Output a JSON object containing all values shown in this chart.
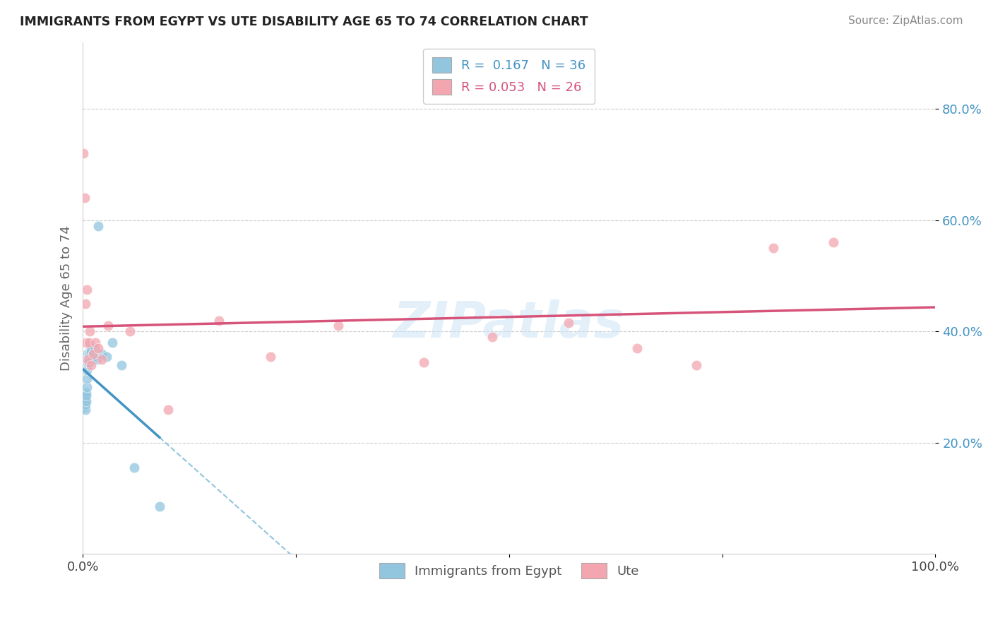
{
  "title": "IMMIGRANTS FROM EGYPT VS UTE DISABILITY AGE 65 TO 74 CORRELATION CHART",
  "source": "Source: ZipAtlas.com",
  "legend_label1": "Immigrants from Egypt",
  "legend_label2": "Ute",
  "R1": "0.167",
  "N1": "36",
  "R2": "0.053",
  "N2": "26",
  "blue_color": "#92c5de",
  "pink_color": "#f4a6b0",
  "blue_line_color": "#4393c3",
  "pink_line_color": "#d6537a",
  "diagonal_color": "#92c5de",
  "ytick_labels": [
    "20.0%",
    "40.0%",
    "60.0%",
    "80.0%"
  ],
  "ytick_values": [
    0.2,
    0.4,
    0.6,
    0.8
  ],
  "blue_x": [
    0.001,
    0.001,
    0.001,
    0.002,
    0.002,
    0.002,
    0.002,
    0.003,
    0.003,
    0.003,
    0.003,
    0.004,
    0.004,
    0.004,
    0.005,
    0.005,
    0.005,
    0.006,
    0.006,
    0.007,
    0.007,
    0.008,
    0.008,
    0.009,
    0.01,
    0.011,
    0.012,
    0.014,
    0.016,
    0.018,
    0.022,
    0.028,
    0.035,
    0.045,
    0.06,
    0.09
  ],
  "blue_y": [
    0.265,
    0.275,
    0.285,
    0.27,
    0.28,
    0.265,
    0.275,
    0.26,
    0.272,
    0.268,
    0.28,
    0.29,
    0.275,
    0.285,
    0.3,
    0.315,
    0.33,
    0.345,
    0.36,
    0.345,
    0.36,
    0.375,
    0.35,
    0.36,
    0.365,
    0.35,
    0.36,
    0.37,
    0.35,
    0.59,
    0.36,
    0.355,
    0.38,
    0.34,
    0.155,
    0.085
  ],
  "pink_x": [
    0.001,
    0.002,
    0.003,
    0.004,
    0.005,
    0.006,
    0.007,
    0.008,
    0.01,
    0.012,
    0.015,
    0.018,
    0.022,
    0.03,
    0.055,
    0.1,
    0.16,
    0.22,
    0.3,
    0.4,
    0.48,
    0.57,
    0.65,
    0.72,
    0.81,
    0.88
  ],
  "pink_y": [
    0.72,
    0.64,
    0.45,
    0.38,
    0.475,
    0.35,
    0.38,
    0.4,
    0.34,
    0.36,
    0.38,
    0.37,
    0.35,
    0.41,
    0.4,
    0.26,
    0.42,
    0.355,
    0.41,
    0.345,
    0.39,
    0.415,
    0.37,
    0.34,
    0.55,
    0.56
  ],
  "xlim": [
    0.0,
    1.0
  ],
  "ylim": [
    0.0,
    0.92
  ],
  "blue_trend_x_min": 0.001,
  "blue_trend_x_max": 0.09,
  "blue_trend_dashed_x_max": 1.0
}
